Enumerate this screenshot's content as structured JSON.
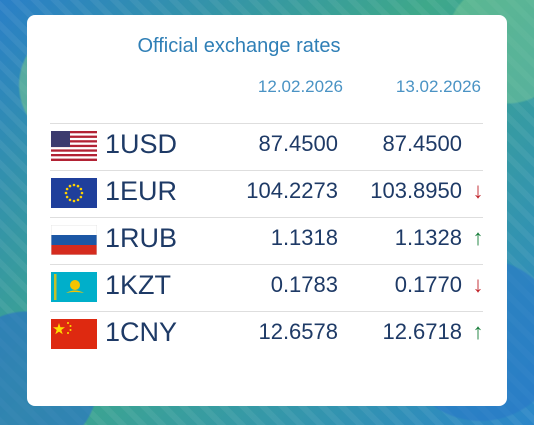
{
  "widget": {
    "title": "Official exchange rates",
    "dates": [
      "12.02.2026",
      "13.02.2026"
    ]
  },
  "rates": [
    {
      "code": "1USD",
      "flag": "us-flag-icon",
      "v1": "87.4500",
      "v2": "87.4500",
      "arrow": "",
      "trend": "none"
    },
    {
      "code": "1EUR",
      "flag": "eu-flag-icon",
      "v1": "104.2273",
      "v2": "103.8950",
      "arrow": "↓",
      "trend": "down"
    },
    {
      "code": "1RUB",
      "flag": "ru-flag-icon",
      "v1": "1.1318",
      "v2": "1.1328",
      "arrow": "↑",
      "trend": "up"
    },
    {
      "code": "1KZT",
      "flag": "kz-flag-icon",
      "v1": "0.1783",
      "v2": "0.1770",
      "arrow": "↓",
      "trend": "down"
    },
    {
      "code": "1CNY",
      "flag": "cn-flag-icon",
      "v1": "12.6578",
      "v2": "12.6718",
      "arrow": "↑",
      "trend": "up"
    }
  ],
  "colors": {
    "title": "#2f7fb6",
    "text": "#1e3a66",
    "down": "#c1272d",
    "up": "#1a7f3c"
  }
}
